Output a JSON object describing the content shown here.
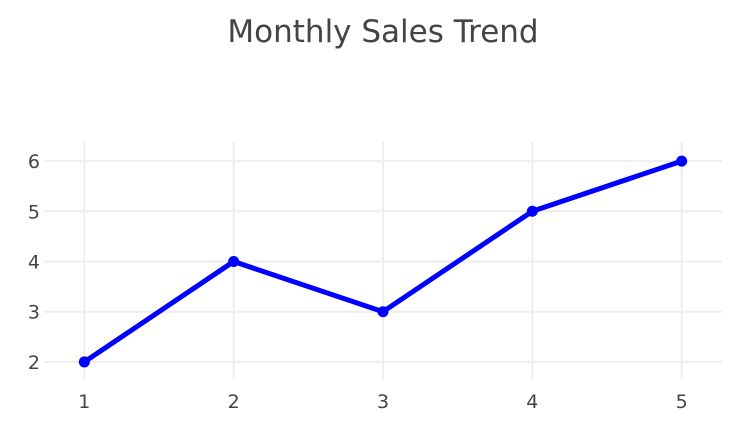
{
  "chart_data": {
    "type": "line",
    "title": "Monthly Sales Trend",
    "xlabel": "",
    "ylabel": "",
    "x": [
      1,
      2,
      3,
      4,
      5
    ],
    "series": [
      {
        "values": [
          2,
          4,
          3,
          5,
          6
        ],
        "color": "#0000ff",
        "mode": "lines+markers"
      }
    ],
    "xticks": [
      1,
      2,
      3,
      4,
      5
    ],
    "yticks": [
      2,
      3,
      4,
      5,
      6
    ],
    "xlim": [
      0.73,
      5.27
    ],
    "ylim": [
      1.64,
      6.38
    ],
    "grid": true,
    "legend": "none"
  }
}
